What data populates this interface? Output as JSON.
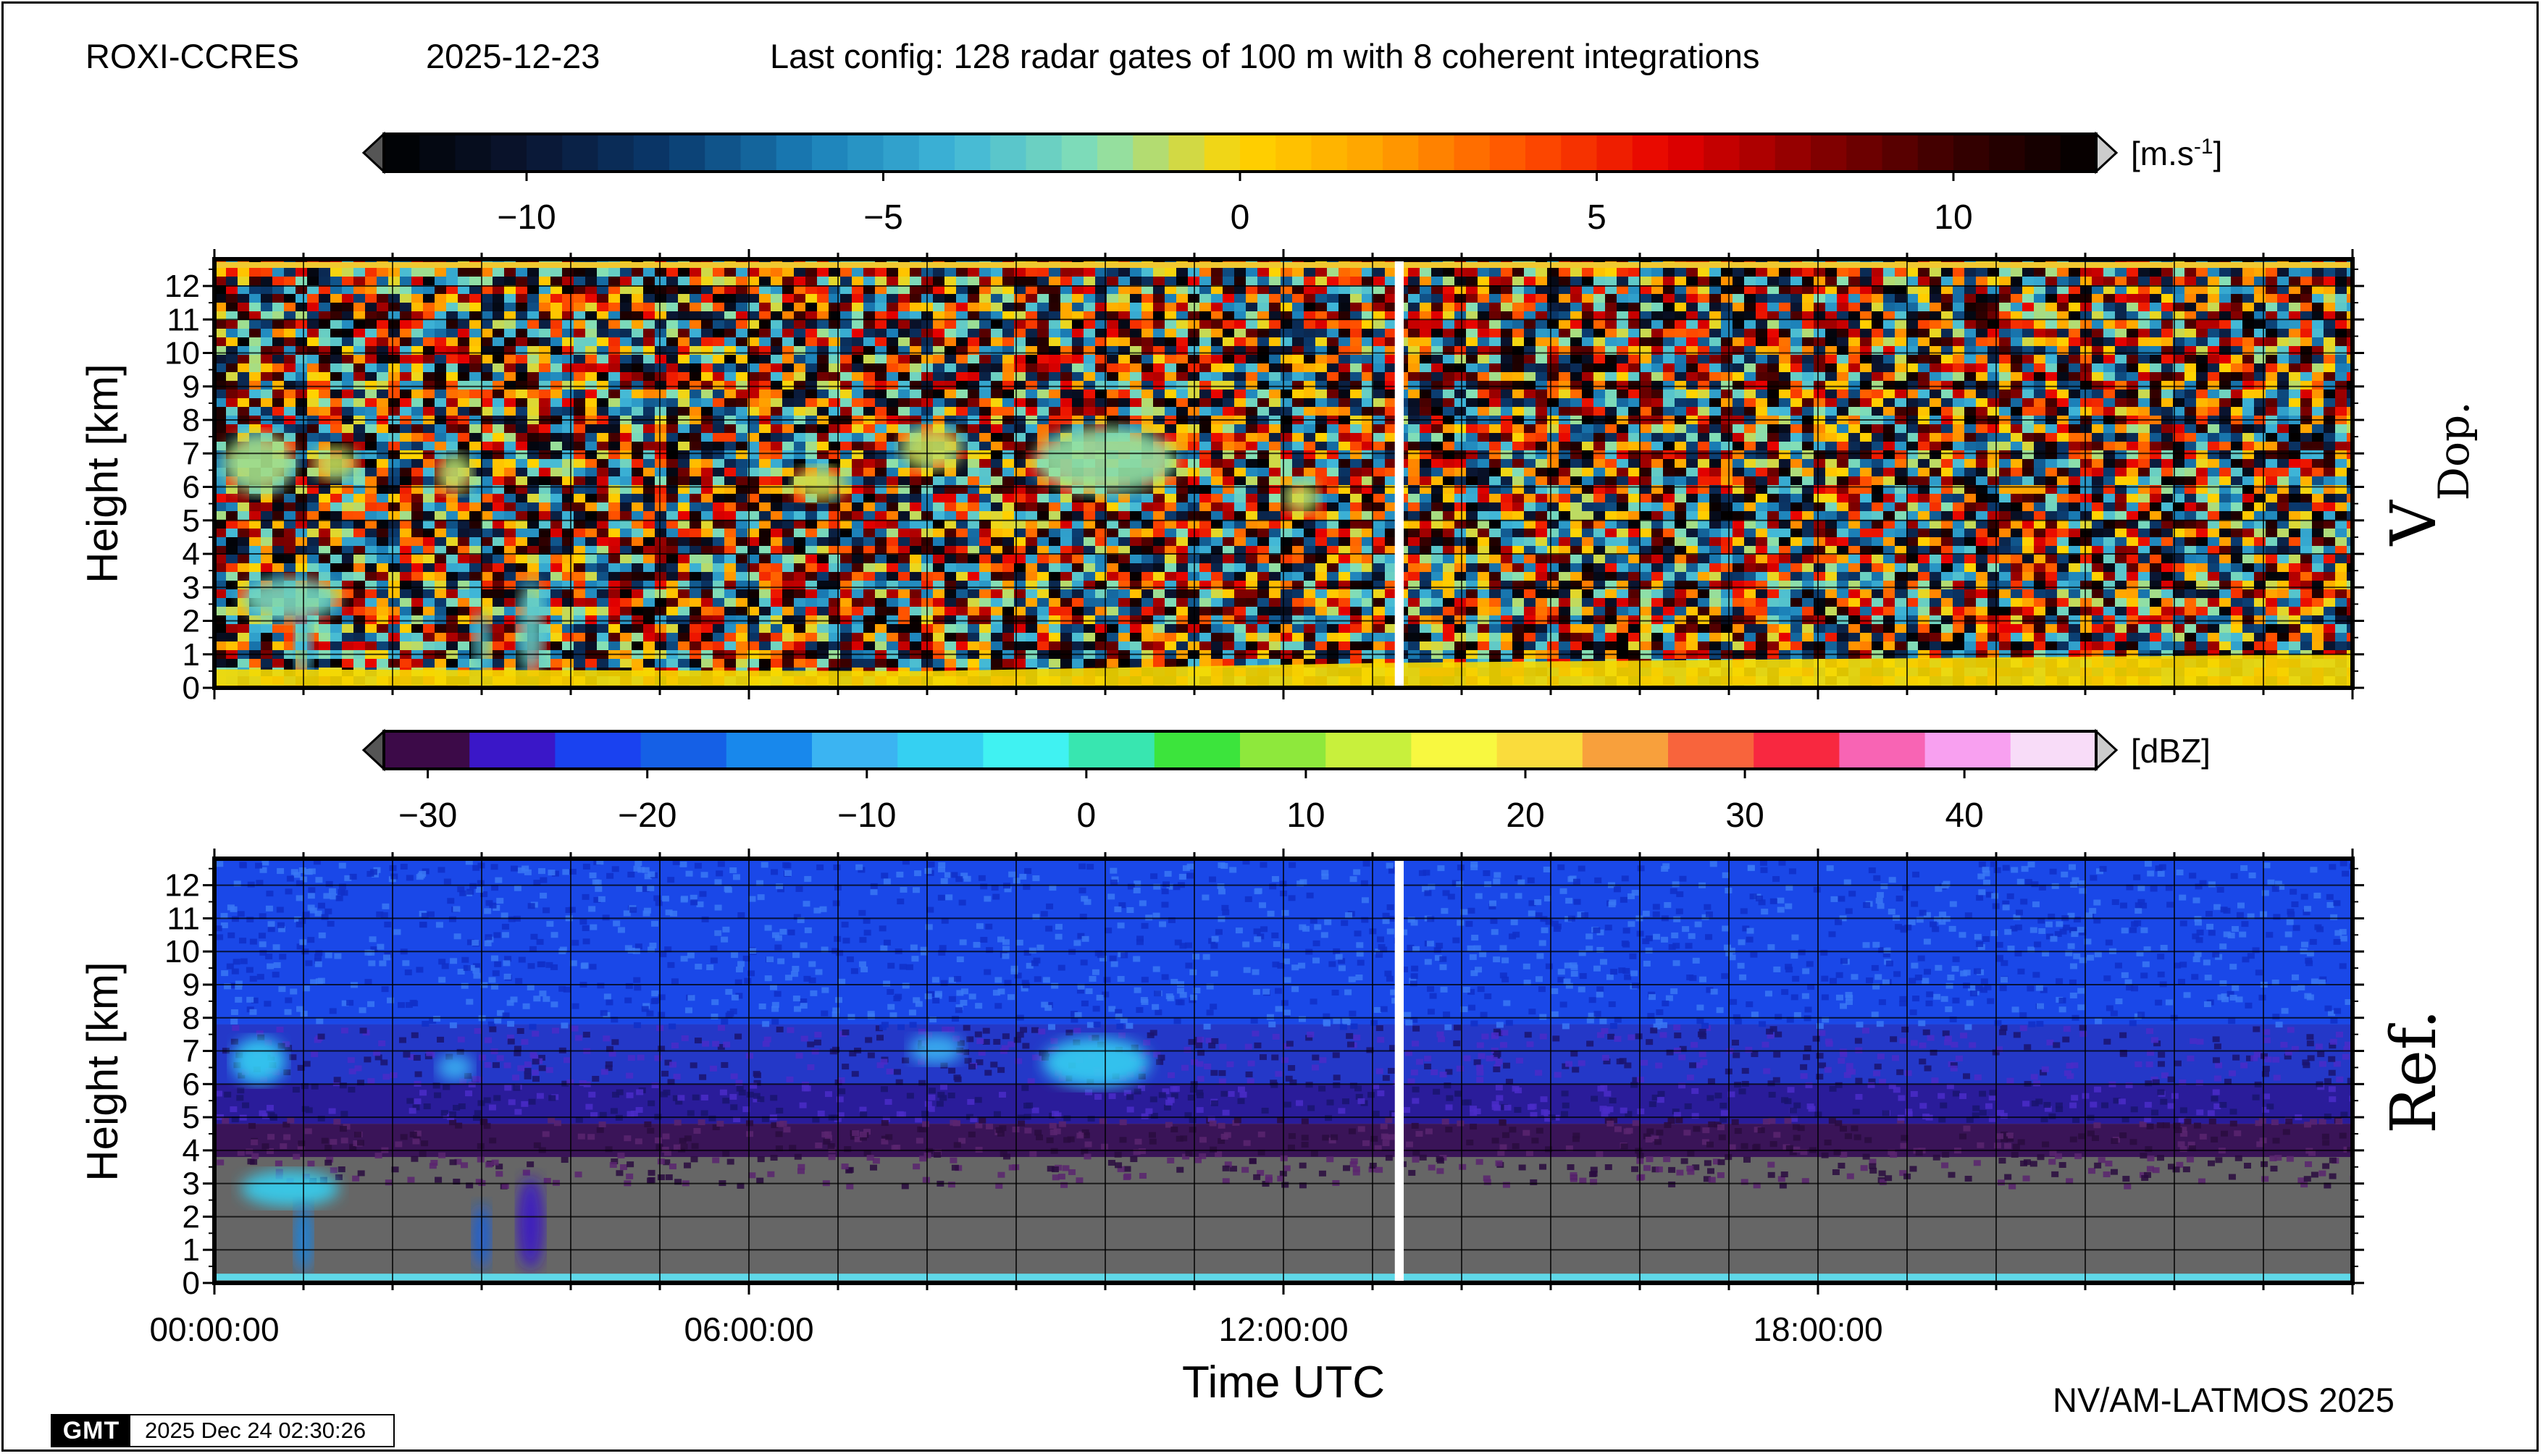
{
  "header": {
    "station": "ROXI-CCRES",
    "date": "2025-12-23",
    "config": "Last config: 128 radar gates of 100 m with 8 coherent integrations"
  },
  "footer": {
    "credit": "NV/AM-LATMOS 2025",
    "gmt_logo": "GMT",
    "timestamp": "2025 Dec 24 02:30:26"
  },
  "colors": {
    "frame": "#000000",
    "gap": "#ffffff",
    "noise_floor_gray": "#666666",
    "surface_line_cyan": "#5fd8e8",
    "bottom_band_yellow": "#f5d800"
  },
  "chart_data": [
    {
      "type": "heatmap",
      "variable_label": "V",
      "variable_subscript": "Dop.",
      "ylabel": "Height [km]",
      "xlabel": "",
      "xlim_hours": [
        0,
        24
      ],
      "ylim": [
        0,
        12.8
      ],
      "y_ticks": [
        "0",
        "1",
        "2",
        "3",
        "4",
        "5",
        "6",
        "7",
        "8",
        "9",
        "10",
        "11",
        "12"
      ],
      "x_ticks": [],
      "data_gap_hours": [
        13.25,
        13.35
      ],
      "grid": true,
      "colorbar": {
        "unit": "[m.s",
        "unit_sup": "-1",
        "unit_close": "]",
        "range": [
          -12,
          12
        ],
        "ticks": [
          -10,
          -5,
          0,
          5,
          10
        ],
        "tick_labels": [
          "−10",
          "−5",
          "0",
          "5",
          "10"
        ],
        "stops": [
          "#000000",
          "#0a1430",
          "#0a3a6e",
          "#1a7fb8",
          "#3fb6d8",
          "#86e0b4",
          "#ffd400",
          "#ffa000",
          "#ff5000",
          "#e60000",
          "#8a0000",
          "#3a0000",
          "#000000"
        ]
      },
      "features": [
        {
          "t0": 0.1,
          "t1": 0.9,
          "h0": 5.8,
          "h1": 7.6,
          "value": -1.5
        },
        {
          "t0": 1.1,
          "t1": 1.6,
          "h0": 6.2,
          "h1": 7.2,
          "value": -1.0
        },
        {
          "t0": 2.5,
          "t1": 2.9,
          "h0": 5.8,
          "h1": 7.0,
          "value": -1.2
        },
        {
          "t0": 6.5,
          "t1": 7.1,
          "h0": 5.6,
          "h1": 6.6,
          "value": -0.8
        },
        {
          "t0": 7.7,
          "t1": 8.4,
          "h0": 6.5,
          "h1": 7.8,
          "value": -1.0
        },
        {
          "t0": 9.2,
          "t1": 10.8,
          "h0": 5.8,
          "h1": 7.8,
          "value": -1.8
        },
        {
          "t0": 12.0,
          "t1": 12.4,
          "h0": 5.2,
          "h1": 6.2,
          "value": -1.0
        },
        {
          "t0": 0.3,
          "t1": 1.4,
          "h0": 2.0,
          "h1": 3.3,
          "value": -2.5
        },
        {
          "t0": 0.9,
          "t1": 1.1,
          "h0": 0.3,
          "h1": 2.2,
          "value": -4.0
        },
        {
          "t0": 2.9,
          "t1": 3.1,
          "h0": 0.4,
          "h1": 2.3,
          "value": -3.5
        },
        {
          "t0": 3.4,
          "t1": 3.7,
          "h0": 0.4,
          "h1": 3.2,
          "value": -3.0
        }
      ]
    },
    {
      "type": "heatmap",
      "variable_label": "Ref.",
      "ylabel": "Height [km]",
      "xlabel": "Time UTC",
      "xlim_hours": [
        0,
        24
      ],
      "ylim": [
        0,
        12.8
      ],
      "y_ticks": [
        "0",
        "1",
        "2",
        "3",
        "4",
        "5",
        "6",
        "7",
        "8",
        "9",
        "10",
        "11",
        "12"
      ],
      "x_ticks": [
        {
          "hour": 0,
          "label": "00:00:00"
        },
        {
          "hour": 6,
          "label": "06:00:00"
        },
        {
          "hour": 12,
          "label": "12:00:00"
        },
        {
          "hour": 18,
          "label": "18:00:00"
        }
      ],
      "data_gap_hours": [
        13.25,
        13.35
      ],
      "grid": true,
      "colorbar": {
        "unit": "[dBZ]",
        "range": [
          -32,
          46
        ],
        "ticks": [
          -30,
          -20,
          -10,
          0,
          10,
          20,
          30,
          40
        ],
        "tick_labels": [
          "−30",
          "−20",
          "−10",
          "0",
          "10",
          "20",
          "30",
          "40"
        ],
        "segments": [
          "#3c0a48",
          "#3a17c8",
          "#1a42f0",
          "#1560e6",
          "#1888ec",
          "#3bb4f2",
          "#35d0f2",
          "#40f2f2",
          "#38e6b0",
          "#3ce43c",
          "#8ee83c",
          "#c8f03c",
          "#f8f840",
          "#fadc3c",
          "#f8a03c",
          "#f8643c",
          "#f82840",
          "#f864b4",
          "#f8a0f0",
          "#f8dcf8"
        ]
      },
      "features": [
        {
          "t0": 0.2,
          "t1": 0.8,
          "h0": 6.0,
          "h1": 7.4,
          "value": -8
        },
        {
          "t0": 2.5,
          "t1": 2.9,
          "h0": 6.1,
          "h1": 6.9,
          "value": -10
        },
        {
          "t0": 7.8,
          "t1": 8.4,
          "h0": 6.6,
          "h1": 7.5,
          "value": -12
        },
        {
          "t0": 9.3,
          "t1": 10.5,
          "h0": 5.9,
          "h1": 7.4,
          "value": -5
        },
        {
          "t0": 0.3,
          "t1": 1.4,
          "h0": 2.3,
          "h1": 3.4,
          "value": -5
        },
        {
          "t0": 0.9,
          "t1": 1.1,
          "h0": 0.3,
          "h1": 2.4,
          "value": -15
        },
        {
          "t0": 2.9,
          "t1": 3.1,
          "h0": 0.4,
          "h1": 2.4,
          "value": -18
        },
        {
          "t0": 3.4,
          "t1": 3.7,
          "h0": 0.4,
          "h1": 3.2,
          "value": -26
        }
      ]
    }
  ]
}
